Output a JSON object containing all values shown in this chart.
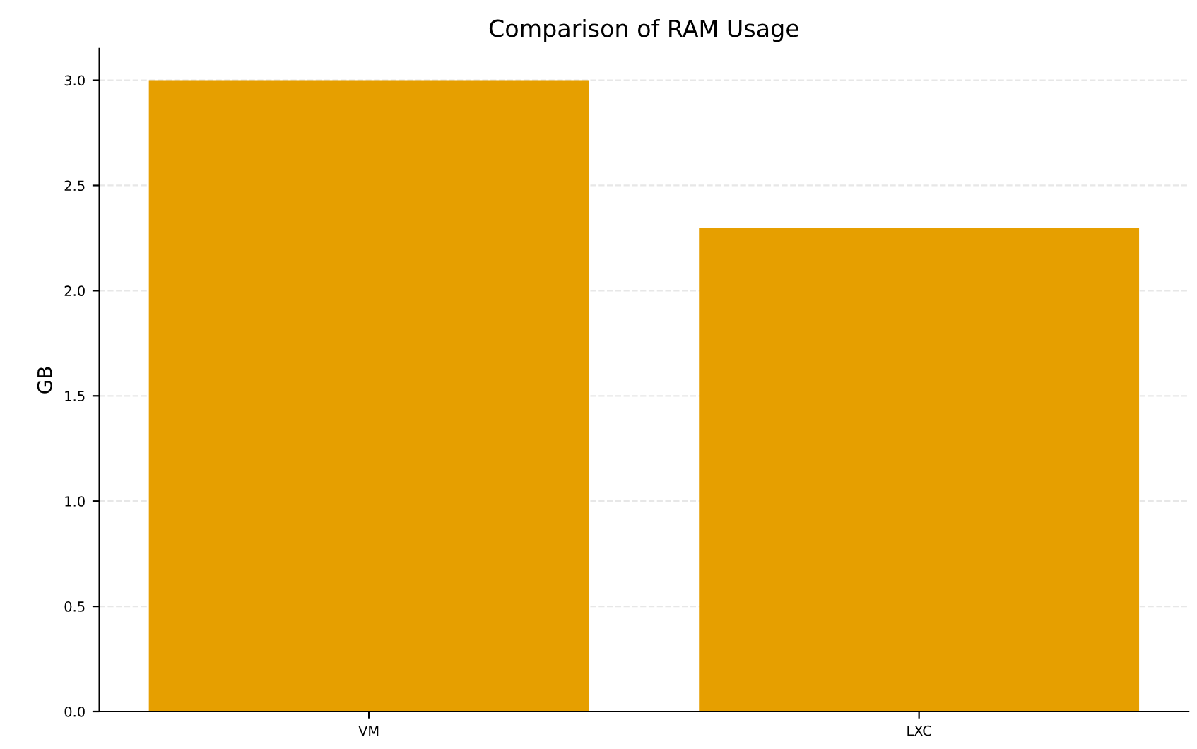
{
  "chart_data": {
    "type": "bar",
    "title": "Comparison of RAM Usage",
    "ylabel": "GB",
    "categories": [
      "VM",
      "LXC"
    ],
    "values": [
      3.0,
      2.3
    ],
    "color": "#e69f00",
    "ylim": [
      0,
      3.15
    ],
    "yticks": [
      {
        "value": 0,
        "label": "0.0"
      },
      0.5,
      {
        "value": 1,
        "label": "1.0"
      },
      1.5,
      {
        "value": 2,
        "label": "2.0"
      },
      2.5,
      {
        "value": 3,
        "label": "3.0"
      }
    ],
    "grid": "y"
  }
}
